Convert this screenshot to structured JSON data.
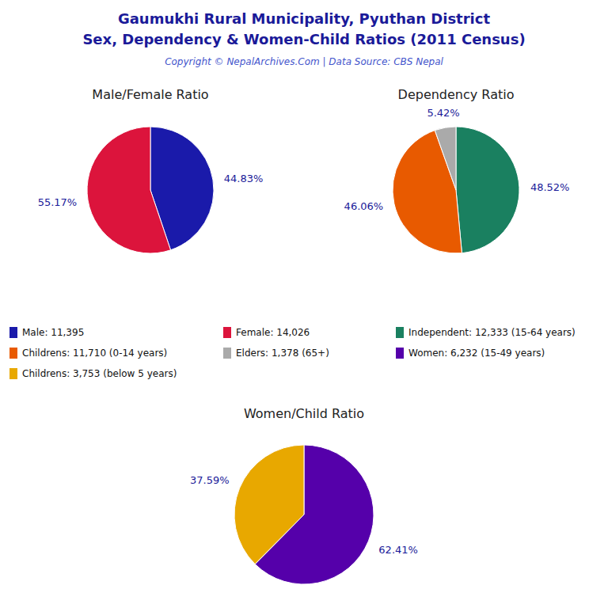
{
  "title": "Gaumukhi Rural Municipality, Pyuthan District",
  "subtitle": "Sex, Dependency & Women-Child Ratios (2011 Census)",
  "annotations": [
    "Copyright © NepalArchives.Com | Data Source: CBS Nepal"
  ],
  "chart_data": [
    {
      "type": "pie",
      "title": "Male/Female Ratio",
      "categories": [
        "Male: 11,395",
        "Female: 14,026"
      ],
      "values": [
        44.83,
        55.17
      ],
      "value_labels": [
        "44.83%",
        "55.17%"
      ],
      "colors": [
        "#1a1aaa",
        "#dc143c"
      ],
      "data_labels": true,
      "legend": "center"
    },
    {
      "type": "pie",
      "title": "Dependency Ratio",
      "categories": [
        "Independent: 12,333 (15-64 years)",
        "Childrens: 11,710 (0-14 years)",
        "Elders: 1,378 (65+)"
      ],
      "values": [
        48.52,
        46.06,
        5.42
      ],
      "value_labels": [
        "48.52%",
        "46.06%",
        "5.42%"
      ],
      "colors": [
        "#1a8060",
        "#e85a00",
        "#aaaaaa"
      ],
      "data_labels": true,
      "legend": "center"
    },
    {
      "type": "pie",
      "title": "Women/Child Ratio",
      "categories": [
        "Women: 6,232 (15-49 years)",
        "Childrens: 3,753 (below 5 years)"
      ],
      "values": [
        62.41,
        37.59
      ],
      "value_labels": [
        "62.41%",
        "37.59%"
      ],
      "colors": [
        "#5500aa",
        "#e8a800"
      ],
      "data_labels": true,
      "legend": "center"
    }
  ]
}
